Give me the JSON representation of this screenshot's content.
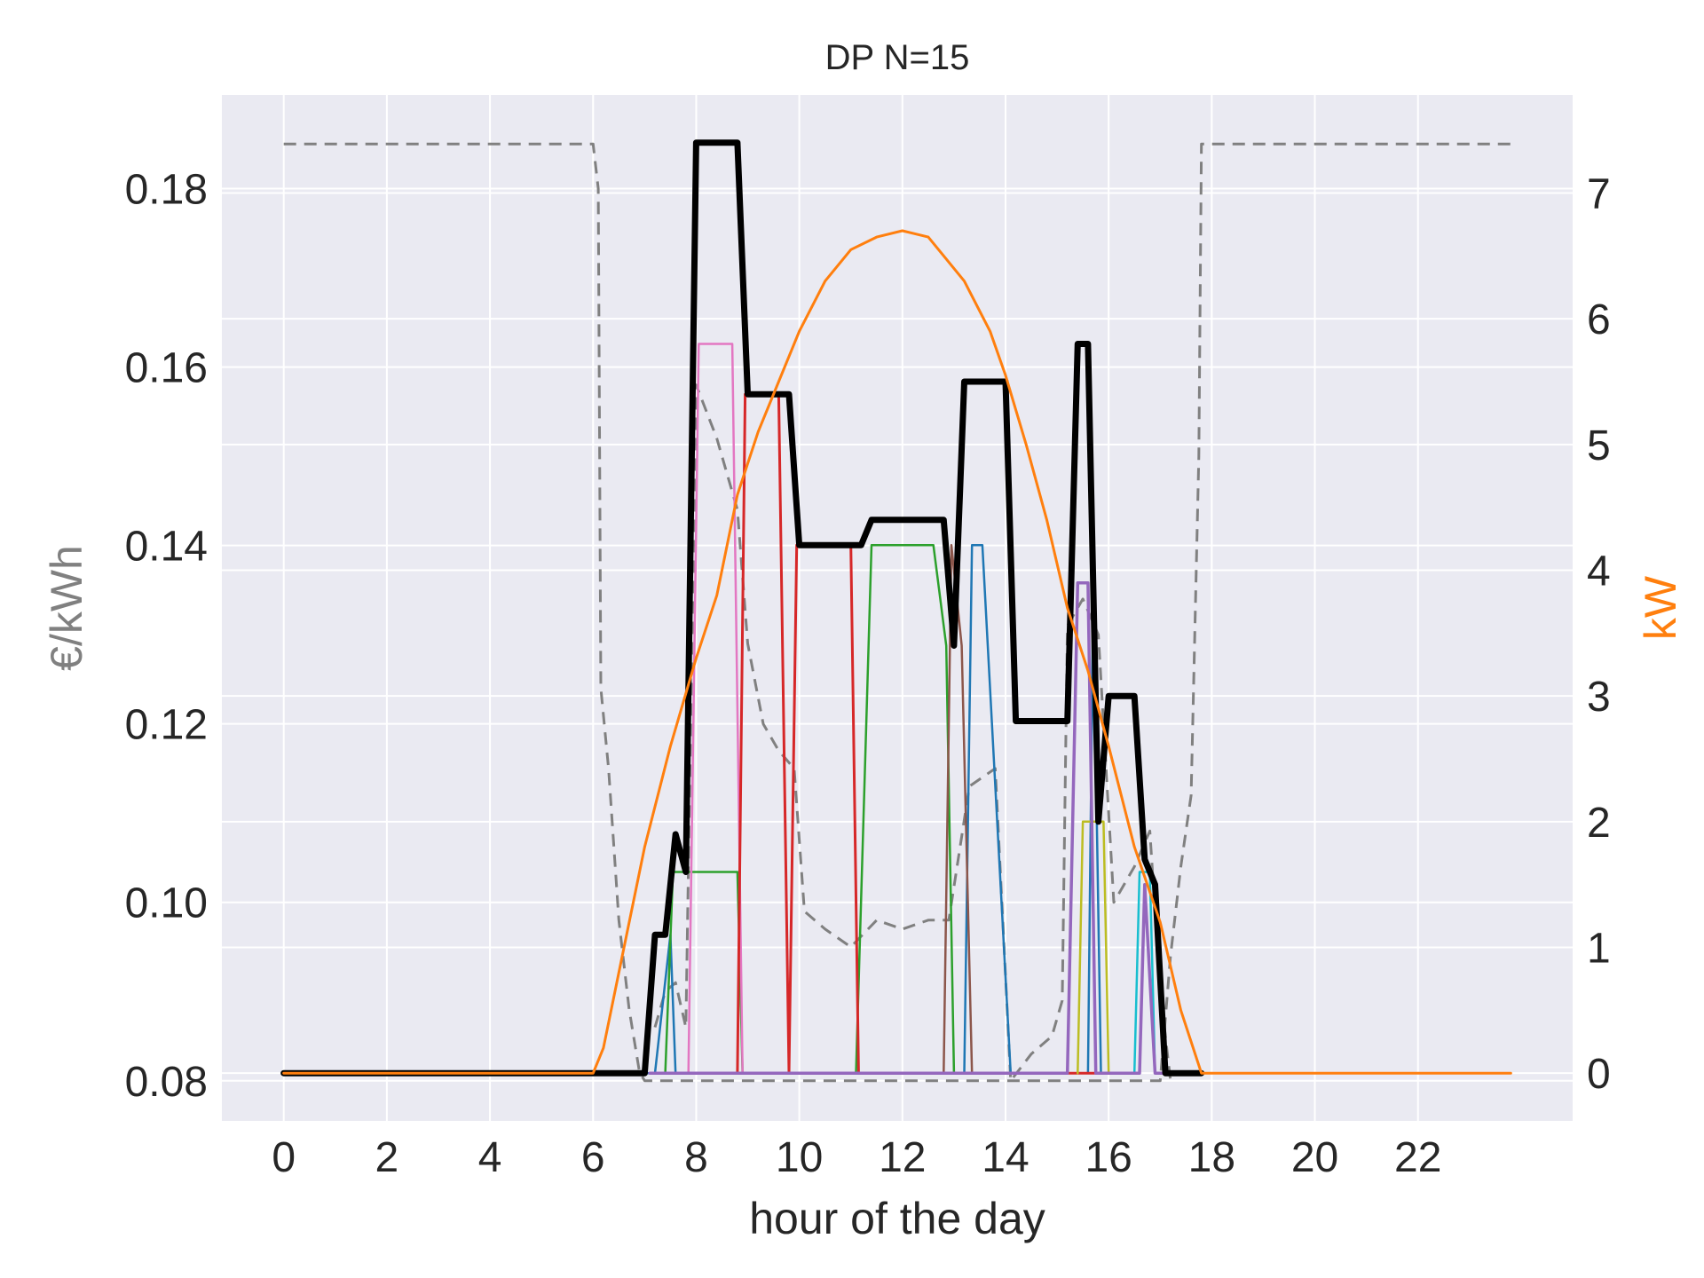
{
  "chart_data": {
    "type": "line",
    "title": "DP N=15",
    "xlabel": "hour of the day",
    "ylabel_left": "€/kWh",
    "ylabel_right": "kW",
    "xlim": [
      -1.2,
      25.0
    ],
    "ylim_left": [
      0.0755,
      0.1905
    ],
    "ylim_right": [
      -0.38,
      7.78
    ],
    "x_ticks": [
      0,
      2,
      4,
      6,
      8,
      10,
      12,
      14,
      16,
      18,
      20,
      22
    ],
    "x_tick_labels": [
      "0",
      "2",
      "4",
      "6",
      "8",
      "10",
      "12",
      "14",
      "16",
      "18",
      "20",
      "22"
    ],
    "y_left_ticks": [
      0.08,
      0.1,
      0.12,
      0.14,
      0.16,
      0.18
    ],
    "y_left_tick_labels": [
      "0.08",
      "0.10",
      "0.12",
      "0.14",
      "0.16",
      "0.18"
    ],
    "y_right_ticks": [
      0,
      1,
      2,
      3,
      4,
      5,
      6,
      7
    ],
    "y_right_tick_labels": [
      "0",
      "1",
      "2",
      "3",
      "4",
      "5",
      "6",
      "7"
    ],
    "grid": true,
    "colors": {
      "background": "#eaeaf2",
      "grid": "#ffffff",
      "left_label": "#808080",
      "right_label": "#ff7f0e",
      "text": "#262626"
    },
    "series": [
      {
        "axis": "left",
        "color": "#808080",
        "width": 3,
        "dash": "14,9",
        "x": [
          0,
          6.0,
          6.1,
          6.15,
          6.3,
          6.5,
          6.7,
          6.9,
          7.0,
          7.2,
          7.4,
          7.6,
          17.0,
          17.2,
          17.4,
          17.6,
          17.75,
          17.8,
          23.8
        ],
        "y": [
          0.185,
          0.185,
          0.18,
          0.124,
          0.115,
          0.098,
          0.088,
          0.081,
          0.08,
          0.08,
          0.08,
          0.08,
          0.08,
          0.094,
          0.104,
          0.112,
          0.15,
          0.185,
          0.185
        ]
      },
      {
        "axis": "left",
        "color": "#808080",
        "width": 3,
        "dash": "14,9",
        "x": [
          7.2,
          7.4,
          7.6,
          7.8,
          8.0,
          8.4,
          8.8,
          9.0,
          9.3,
          9.6,
          9.9,
          10.1,
          10.5,
          11.0,
          11.5,
          12.0,
          12.5,
          12.9,
          13.3,
          13.8,
          14.1,
          14.5,
          14.9,
          15.1,
          15.2,
          15.5,
          15.8,
          16.1,
          16.5,
          16.8,
          17.0,
          17.2
        ],
        "y": [
          0.086,
          0.09,
          0.091,
          0.086,
          0.158,
          0.152,
          0.144,
          0.129,
          0.12,
          0.117,
          0.115,
          0.099,
          0.097,
          0.095,
          0.098,
          0.097,
          0.098,
          0.098,
          0.113,
          0.115,
          0.08,
          0.083,
          0.085,
          0.089,
          0.131,
          0.134,
          0.13,
          0.1,
          0.104,
          0.108,
          0.09,
          0.08
        ]
      },
      {
        "axis": "right",
        "color": "#1f77b4",
        "width": 2.5,
        "x": [
          7.0,
          7.2,
          7.5,
          7.6,
          7.8,
          13.2,
          13.35,
          13.55,
          14.1,
          15.6,
          15.7,
          15.85,
          16.0,
          16.2
        ],
        "y": [
          0,
          0,
          1.1,
          0,
          0,
          0,
          4.2,
          4.2,
          0,
          0,
          3.8,
          0,
          0,
          0
        ]
      },
      {
        "axis": "right",
        "color": "#2ca02c",
        "width": 2.5,
        "x": [
          7.4,
          7.55,
          7.7,
          8.8,
          8.9,
          11.1,
          11.4,
          12.6,
          12.85,
          13.0,
          13.2
        ],
        "y": [
          0,
          1.6,
          1.6,
          1.6,
          0,
          0,
          4.2,
          4.2,
          3.4,
          0,
          0
        ],
        "note": null
      },
      {
        "axis": "right",
        "color": "#e377c2",
        "width": 2.5,
        "x": [
          7.6,
          7.85,
          8.05,
          8.7,
          8.9,
          9.0
        ],
        "y": [
          0,
          0,
          5.8,
          5.8,
          0,
          0
        ]
      },
      {
        "axis": "right",
        "color": "#d62728",
        "width": 3,
        "x": [
          8.8,
          8.95,
          9.15,
          9.6,
          9.8,
          9.95,
          10.15,
          11.0,
          11.15,
          11.4,
          15.2,
          15.8
        ],
        "y": [
          0,
          5.4,
          5.4,
          5.4,
          0,
          4.2,
          4.2,
          4.2,
          0,
          0,
          0,
          0
        ]
      },
      {
        "axis": "right",
        "color": "#8c564b",
        "width": 2.5,
        "x": [
          12.8,
          12.95,
          13.15,
          13.35,
          13.5
        ],
        "y": [
          0,
          4.2,
          3.4,
          0,
          0
        ]
      },
      {
        "axis": "right",
        "color": "#bcbd22",
        "width": 2.5,
        "x": [
          15.4,
          15.5,
          15.9,
          16.0,
          16.1
        ],
        "y": [
          0,
          2.0,
          2.0,
          0,
          0
        ]
      },
      {
        "axis": "right",
        "color": "#17becf",
        "width": 2.5,
        "x": [
          16.5,
          16.6,
          16.8,
          16.9,
          17.0
        ],
        "y": [
          0,
          1.6,
          1.6,
          0,
          0
        ]
      },
      {
        "axis": "right",
        "color": "#9467bd",
        "width": 3.5,
        "x": [
          7.1,
          15.2,
          15.4,
          15.6,
          15.75,
          16.6,
          16.7,
          16.9,
          17.1
        ],
        "y": [
          0,
          0,
          3.9,
          3.9,
          0,
          0,
          1.5,
          0,
          0
        ]
      },
      {
        "axis": "right",
        "color": "#000000",
        "width": 7,
        "x": [
          0,
          7.0,
          7.2,
          7.4,
          7.6,
          7.8,
          8.0,
          8.8,
          9.0,
          9.8,
          10.0,
          11.2,
          11.4,
          12.8,
          13.0,
          13.2,
          13.4,
          14.0,
          14.2,
          15.2,
          15.4,
          15.6,
          15.8,
          16.0,
          16.2,
          16.5,
          16.7,
          16.9,
          17.1,
          17.8
        ],
        "y": [
          0,
          0,
          1.1,
          1.1,
          1.9,
          1.6,
          7.4,
          7.4,
          5.4,
          5.4,
          4.2,
          4.2,
          4.4,
          4.4,
          3.4,
          5.5,
          5.5,
          5.5,
          2.8,
          2.8,
          5.8,
          5.8,
          2.0,
          3.0,
          3.0,
          3.0,
          1.7,
          1.5,
          0,
          0
        ]
      },
      {
        "axis": "right",
        "color": "#ff7f0e",
        "width": 3,
        "x": [
          0,
          6.0,
          6.2,
          6.5,
          7.0,
          7.5,
          8.0,
          8.4,
          8.8,
          9.2,
          9.6,
          10.0,
          10.5,
          11.0,
          11.5,
          12.0,
          12.2,
          12.5,
          12.8,
          13.2,
          13.7,
          14.0,
          14.4,
          14.8,
          15.2,
          15.6,
          16.0,
          16.5,
          17.0,
          17.4,
          17.8,
          23.8
        ],
        "y": [
          0,
          0,
          0.2,
          0.8,
          1.8,
          2.6,
          3.3,
          3.8,
          4.6,
          5.1,
          5.5,
          5.9,
          6.3,
          6.55,
          6.65,
          6.7,
          6.68,
          6.65,
          6.5,
          6.3,
          5.9,
          5.55,
          5.0,
          4.4,
          3.7,
          3.2,
          2.6,
          1.8,
          1.2,
          0.5,
          0,
          0
        ]
      }
    ]
  }
}
